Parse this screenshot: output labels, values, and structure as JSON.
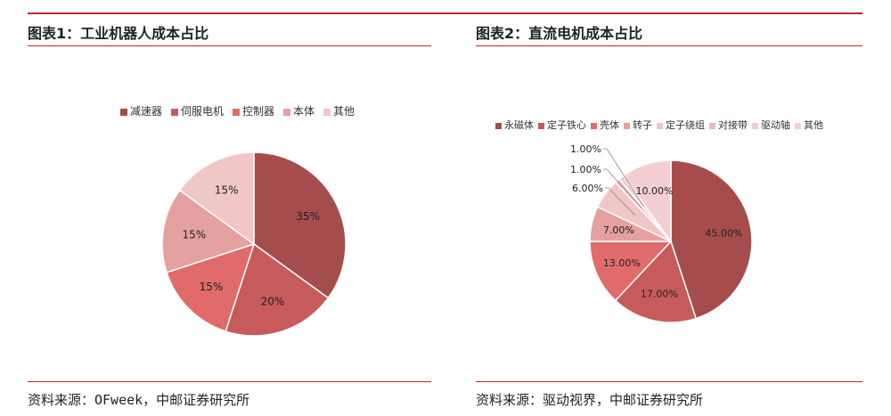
{
  "colors": {
    "accent": "#c0272d",
    "palette": [
      "#a54d4d",
      "#c75b5b",
      "#e16b6b",
      "#e5a0a0",
      "#f0c6c6",
      "#f3cfcf",
      "#f5d8d8",
      "#f7dfdf"
    ]
  },
  "left": {
    "title": "图表1：工业机器人成本占比",
    "source": "资料来源：OFweek，中邮证券研究所"
  },
  "right": {
    "title": "图表2：直流电机成本占比",
    "source": "资料来源：驱动视界，中邮证券研究所"
  },
  "chart_data": [
    {
      "type": "pie",
      "categories": [
        "减速器",
        "伺服电机",
        "控制器",
        "本体",
        "其他"
      ],
      "values": [
        35,
        20,
        15,
        15,
        15
      ],
      "labels": [
        "35%",
        "20%",
        "15%",
        "15%",
        "15%"
      ],
      "colors": [
        "#a54d4d",
        "#c75b5b",
        "#e16b6b",
        "#e5a0a0",
        "#f0c6c6"
      ],
      "legend": "top"
    },
    {
      "type": "pie",
      "categories": [
        "永磁体",
        "定子铁心",
        "壳体",
        "转子",
        "定子绕组",
        "对接带",
        "驱动轴",
        "其他"
      ],
      "values": [
        45,
        17,
        13,
        7,
        6,
        1,
        1,
        10
      ],
      "labels": [
        "45.00%",
        "17.00%",
        "13.00%",
        "7.00%",
        "6.00%",
        "1.00%",
        "1.00%",
        "10.00%"
      ],
      "colors": [
        "#a54d4d",
        "#c75b5b",
        "#e16b6b",
        "#e5a0a0",
        "#f0c6c6",
        "#eab9b9",
        "#f2cccc",
        "#f3cfcf"
      ],
      "legend": "top"
    }
  ]
}
